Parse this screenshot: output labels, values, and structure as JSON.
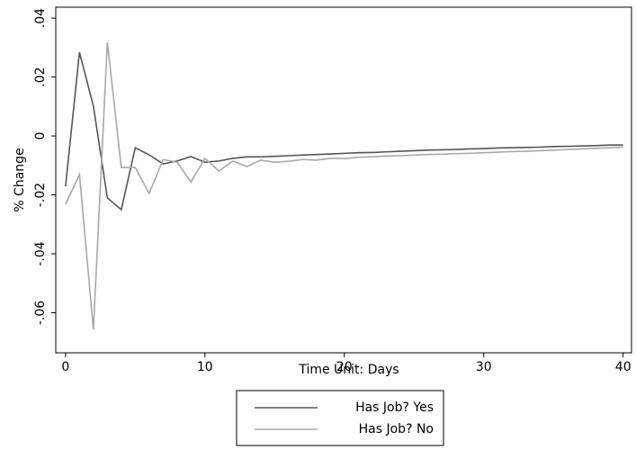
{
  "chart_data": {
    "type": "line",
    "x": [
      0,
      1,
      2,
      3,
      4,
      5,
      6,
      7,
      8,
      9,
      10,
      11,
      12,
      13,
      14,
      15,
      16,
      17,
      18,
      19,
      20,
      21,
      22,
      23,
      24,
      25,
      26,
      27,
      28,
      29,
      30,
      31,
      32,
      33,
      34,
      35,
      36,
      37,
      38,
      39,
      40
    ],
    "series": [
      {
        "name": "Has Job? Yes",
        "color": "#555555",
        "values": [
          -0.0171,
          0.0284,
          0.0101,
          -0.021,
          -0.025,
          -0.004,
          -0.0064,
          -0.0095,
          -0.0085,
          -0.007,
          -0.0089,
          -0.0085,
          -0.0076,
          -0.0071,
          -0.0071,
          -0.0069,
          -0.0067,
          -0.0065,
          -0.0063,
          -0.0061,
          -0.0059,
          -0.0057,
          -0.0056,
          -0.0054,
          -0.0052,
          -0.005,
          -0.0048,
          -0.0047,
          -0.0046,
          -0.0044,
          -0.0043,
          -0.0041,
          -0.004,
          -0.0039,
          -0.0038,
          -0.0036,
          -0.0035,
          -0.0034,
          -0.0033,
          -0.0031,
          -0.0031
        ]
      },
      {
        "name": "Has Job? No",
        "color": "#a8a8a8",
        "values": [
          -0.0232,
          -0.0131,
          -0.0657,
          0.0318,
          -0.0107,
          -0.0107,
          -0.0195,
          -0.008,
          -0.0089,
          -0.0156,
          -0.0076,
          -0.0119,
          -0.0085,
          -0.0104,
          -0.0082,
          -0.0089,
          -0.0086,
          -0.008,
          -0.0082,
          -0.0076,
          -0.0077,
          -0.0072,
          -0.0071,
          -0.0068,
          -0.0067,
          -0.0065,
          -0.0063,
          -0.0062,
          -0.006,
          -0.0059,
          -0.0057,
          -0.0055,
          -0.0053,
          -0.0052,
          -0.005,
          -0.0048,
          -0.0046,
          -0.0044,
          -0.0042,
          -0.004,
          -0.0038
        ]
      }
    ],
    "x_label": "Time Unit: Days",
    "y_label": "% Change",
    "xlim": [
      -0.7,
      40.6
    ],
    "xticks": [
      0,
      10,
      20,
      30,
      40
    ],
    "ylim": [
      -0.0736,
      0.0437
    ],
    "yticks": [
      {
        "value": 0.04,
        "label": ".04"
      },
      {
        "value": 0.02,
        "label": ".02"
      },
      0,
      {
        "value": -0.02,
        "label": "-.02"
      },
      {
        "value": -0.04,
        "label": "-.04"
      },
      {
        "value": -0.06,
        "label": "-.06"
      }
    ],
    "grid": false,
    "legend": "bottom"
  }
}
